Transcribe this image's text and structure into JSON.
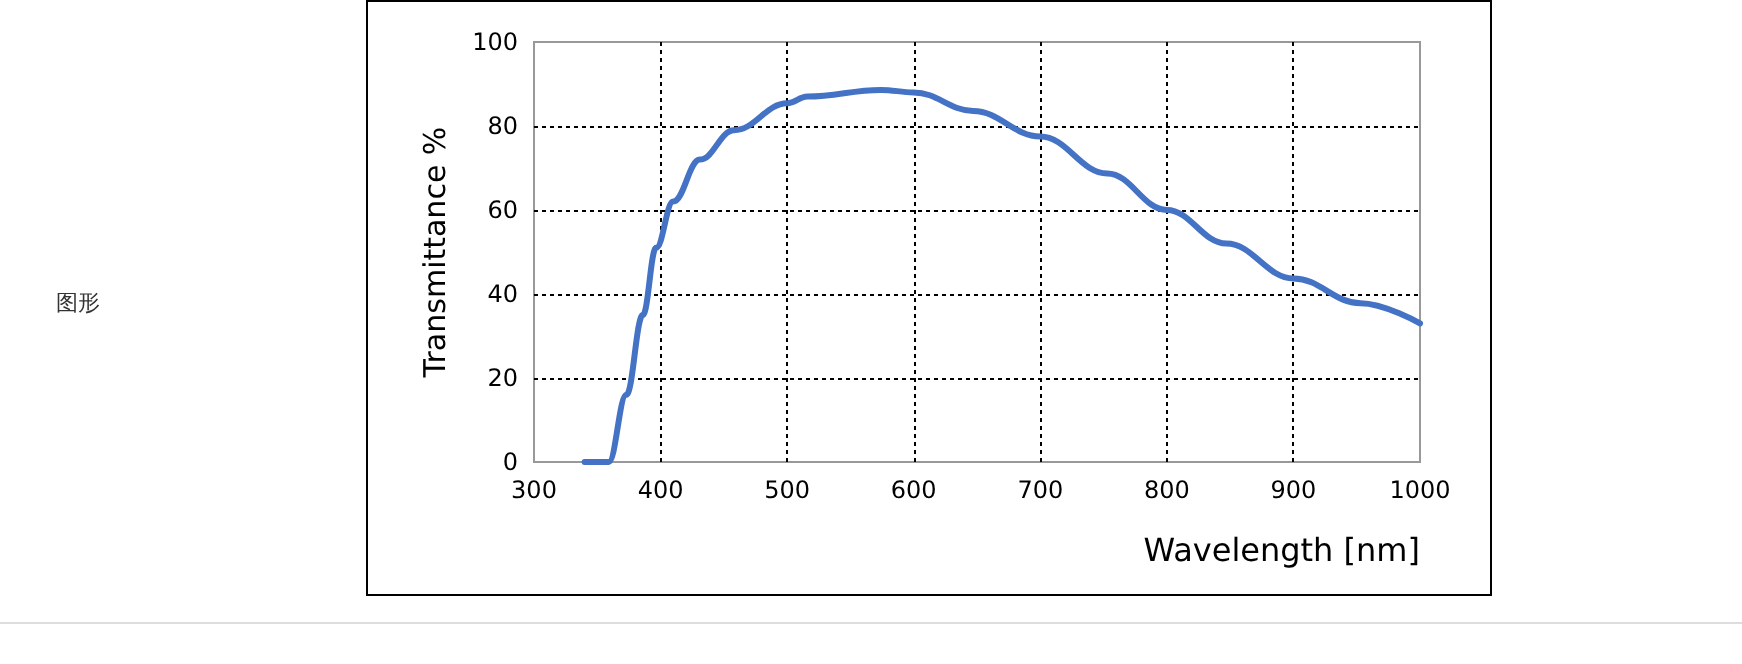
{
  "chart_data": {
    "type": "line",
    "xlabel": "Wavelength [nm]",
    "ylabel": "Transmittance %",
    "annotations": [
      "图形"
    ],
    "x": [
      340,
      359,
      373,
      386,
      396.5,
      410,
      431,
      458,
      500,
      516,
      574,
      600,
      647,
      700,
      753,
      800,
      847,
      900,
      953,
      1000
    ],
    "series": [
      {
        "color": "#4472c4",
        "values": [
          0,
          0,
          16,
          35,
          51,
          62,
          72,
          79,
          85.4,
          87,
          88.6,
          88,
          83.6,
          77.5,
          68.7,
          60,
          52,
          43.7,
          37.8,
          33
        ]
      }
    ],
    "xlim": [
      300,
      1000
    ],
    "xticks": [
      300,
      400,
      500,
      600,
      700,
      800,
      900,
      1000
    ],
    "ylim": [
      0,
      100
    ],
    "yticks": [
      0,
      20,
      40,
      60,
      80,
      100
    ],
    "grid": true,
    "marker": "none",
    "line_style": "solid"
  }
}
